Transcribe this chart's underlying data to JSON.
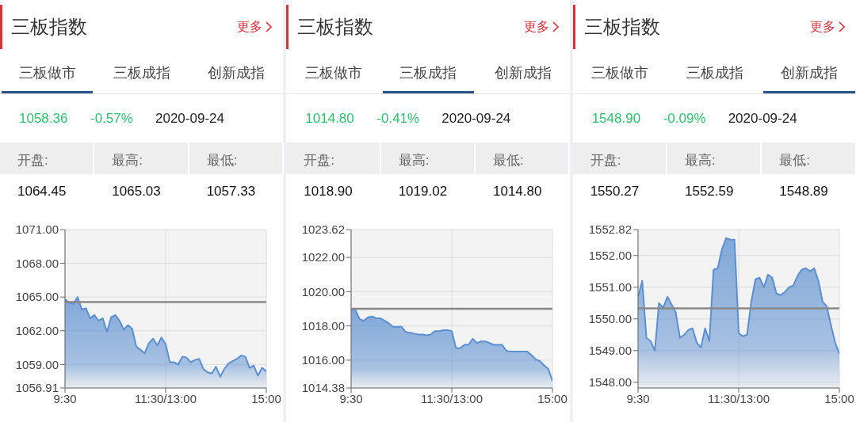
{
  "chart_data": [
    {
      "type": "area",
      "title": "三板指数",
      "annotations": [
        "更多",
        "三板做市",
        "三板成指",
        "创新成指",
        "1058.36",
        "-0.57%",
        "2020-09-24",
        "开盘:",
        "最高:",
        "最低:",
        "1064.45",
        "1065.03",
        "1057.33"
      ],
      "categories": [
        "9:30",
        null,
        null,
        null,
        null,
        null,
        null,
        null,
        null,
        null,
        null,
        null,
        null,
        null,
        null,
        null,
        null,
        null,
        null,
        null,
        null,
        null,
        null,
        null,
        "11:30/13:00",
        null,
        null,
        null,
        null,
        null,
        null,
        null,
        null,
        null,
        null,
        null,
        null,
        null,
        null,
        null,
        null,
        null,
        null,
        null,
        null,
        null,
        null,
        null,
        "15:00"
      ],
      "series": [
        {
          "color": "#5b8fd0",
          "values": [
            1064.8,
            1064.5,
            1064.4,
            1065.0,
            1063.9,
            1064.0,
            1063.1,
            1063.4,
            1062.9,
            1063.1,
            1061.9,
            1063.2,
            1063.4,
            1062.9,
            1062.1,
            1062.5,
            1062.2,
            1060.6,
            1060.3,
            1060.0,
            1060.9,
            1061.3,
            1060.7,
            1061.4,
            1060.8,
            1059.2,
            1059.2,
            1059.0,
            1059.7,
            1059.6,
            1059.2,
            1059.4,
            1059.5,
            1058.6,
            1058.3,
            1058.2,
            1058.8,
            1057.9,
            1058.6,
            1059.1,
            1059.3,
            1059.5,
            1059.8,
            1059.7,
            1058.7,
            1058.9,
            1058.0,
            1058.7,
            1058.4
          ]
        }
      ],
      "ylim": [
        1056.91,
        1071.0
      ],
      "yticks": [
        {
          "value": 1056.91,
          "label": "1056.91"
        },
        {
          "value": 1059,
          "label": "1059.00"
        },
        {
          "value": 1062,
          "label": "1062.00"
        },
        {
          "value": 1065,
          "label": "1065.00"
        },
        {
          "value": 1068,
          "label": "1068.00"
        },
        {
          "value": 1071,
          "label": "1071.00"
        }
      ],
      "ref_lines": [
        {
          "axis": "y",
          "value": 1064.55,
          "color": "#888888"
        }
      ],
      "grid": true
    },
    {
      "type": "area",
      "title": "三板指数",
      "annotations": [
        "更多",
        "三板做市",
        "三板成指",
        "创新成指",
        "1014.80",
        "-0.41%",
        "2020-09-24",
        "开盘:",
        "最高:",
        "最低:",
        "1018.90",
        "1019.02",
        "1014.80"
      ],
      "categories": [
        "9:30",
        null,
        null,
        null,
        null,
        null,
        null,
        null,
        null,
        null,
        null,
        null,
        null,
        null,
        null,
        null,
        null,
        null,
        null,
        null,
        null,
        null,
        null,
        null,
        "11:30/13:00",
        null,
        null,
        null,
        null,
        null,
        null,
        null,
        null,
        null,
        null,
        null,
        null,
        null,
        null,
        null,
        null,
        null,
        null,
        null,
        null,
        null,
        null,
        null,
        "15:00"
      ],
      "series": [
        {
          "color": "#5b8fd0",
          "values": [
            1018.95,
            1018.95,
            1018.4,
            1018.3,
            1018.5,
            1018.55,
            1018.45,
            1018.45,
            1018.3,
            1018.15,
            1017.95,
            1017.95,
            1017.95,
            1017.65,
            1017.6,
            1017.55,
            1017.5,
            1017.5,
            1017.45,
            1017.5,
            1017.7,
            1017.7,
            1017.75,
            1017.75,
            1017.7,
            1016.7,
            1016.7,
            1016.9,
            1016.9,
            1017.25,
            1017.0,
            1017.1,
            1017.1,
            1017.0,
            1016.9,
            1016.9,
            1016.9,
            1016.55,
            1016.5,
            1016.5,
            1016.5,
            1016.5,
            1016.5,
            1016.3,
            1016.05,
            1015.95,
            1015.7,
            1015.5,
            1014.8
          ]
        }
      ],
      "ylim": [
        1014.38,
        1023.62
      ],
      "yticks": [
        {
          "value": 1014.38,
          "label": "1014.38"
        },
        {
          "value": 1016,
          "label": "1016.00"
        },
        {
          "value": 1018,
          "label": "1018.00"
        },
        {
          "value": 1020,
          "label": "1020.00"
        },
        {
          "value": 1022,
          "label": "1022.00"
        },
        {
          "value": 1023.62,
          "label": "1023.62"
        }
      ],
      "ref_lines": [
        {
          "axis": "y",
          "value": 1019.0,
          "color": "#888888"
        }
      ],
      "grid": true
    },
    {
      "type": "area",
      "title": "三板指数",
      "annotations": [
        "更多",
        "三板做市",
        "三板成指",
        "创新成指",
        "1548.90",
        "-0.09%",
        "2020-09-24",
        "开盘:",
        "最高:",
        "最低:",
        "1550.27",
        "1552.59",
        "1548.89"
      ],
      "categories": [
        "9:30",
        null,
        null,
        null,
        null,
        null,
        null,
        null,
        null,
        null,
        null,
        null,
        null,
        null,
        null,
        null,
        null,
        null,
        null,
        null,
        null,
        null,
        null,
        null,
        "11:30/13:00",
        null,
        null,
        null,
        null,
        null,
        null,
        null,
        null,
        null,
        null,
        null,
        null,
        null,
        null,
        null,
        null,
        null,
        null,
        null,
        null,
        null,
        null,
        null,
        "15:00"
      ],
      "series": [
        {
          "color": "#5b8fd0",
          "values": [
            1550.7,
            1551.2,
            1549.4,
            1549.3,
            1549.0,
            1550.5,
            1550.35,
            1550.7,
            1550.45,
            1550.2,
            1549.4,
            1549.5,
            1549.65,
            1549.7,
            1549.25,
            1549.1,
            1549.7,
            1549.3,
            1551.55,
            1551.6,
            1552.2,
            1552.55,
            1552.5,
            1552.5,
            1549.55,
            1549.45,
            1549.5,
            1550.55,
            1551.25,
            1551.3,
            1551.0,
            1551.4,
            1551.3,
            1550.8,
            1550.75,
            1550.85,
            1551.0,
            1551.05,
            1551.35,
            1551.55,
            1551.6,
            1551.5,
            1551.6,
            1551.2,
            1550.55,
            1550.4,
            1549.8,
            1549.25,
            1548.9
          ]
        }
      ],
      "ylim": [
        1547.82,
        1552.82
      ],
      "yticks": [
        {
          "value": 1548,
          "label": "1548.00"
        },
        {
          "value": 1549,
          "label": "1549.00"
        },
        {
          "value": 1550,
          "label": "1550.00"
        },
        {
          "value": 1551,
          "label": "1551.00"
        },
        {
          "value": 1552,
          "label": "1552.00"
        },
        {
          "value": 1552.82,
          "label": "1552.82"
        }
      ],
      "ref_lines": [
        {
          "axis": "y",
          "value": 1550.33,
          "color": "#888888"
        }
      ],
      "grid": true
    }
  ]
}
